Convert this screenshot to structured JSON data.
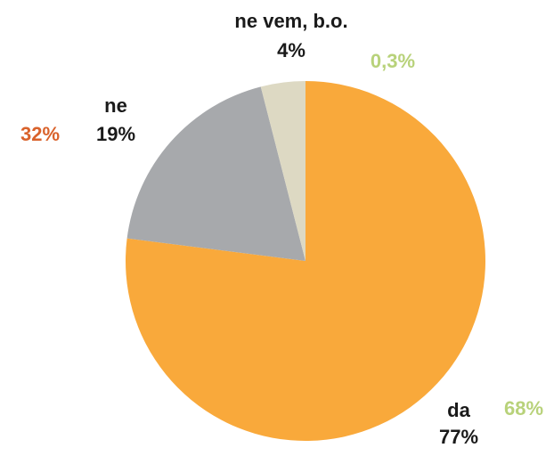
{
  "chart_data": {
    "type": "pie",
    "categories": [
      "da",
      "ne",
      "ne vem, b.o."
    ],
    "values": [
      77,
      19,
      4
    ],
    "value_labels": [
      "77%",
      "19%",
      "4%"
    ],
    "colors": [
      "#f9a93b",
      "#a7a9ac",
      "#ddd9c3"
    ],
    "annotations": [
      {
        "text": "32%",
        "color": "#d9622b"
      },
      {
        "text": "0,3%",
        "color": "#b8d27a"
      },
      {
        "text": "68%",
        "color": "#b8d27a"
      }
    ]
  }
}
